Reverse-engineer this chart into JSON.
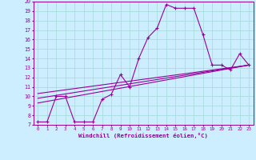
{
  "xlabel": "Windchill (Refroidissement éolien,°C)",
  "xlim": [
    -0.5,
    23.5
  ],
  "ylim": [
    7,
    20
  ],
  "xticks": [
    0,
    1,
    2,
    3,
    4,
    5,
    6,
    7,
    8,
    9,
    10,
    11,
    12,
    13,
    14,
    15,
    16,
    17,
    18,
    19,
    20,
    21,
    22,
    23
  ],
  "yticks": [
    7,
    8,
    9,
    10,
    11,
    12,
    13,
    14,
    15,
    16,
    17,
    18,
    19,
    20
  ],
  "bg_color": "#cceeff",
  "line_color": "#990099",
  "grid_color": "#aadddd",
  "main_curve_x": [
    0,
    1,
    2,
    3,
    4,
    5,
    6,
    7,
    8,
    9,
    10,
    11,
    12,
    13,
    14,
    15,
    16,
    17,
    18,
    19,
    20,
    21,
    22,
    23
  ],
  "main_curve_y": [
    7.3,
    7.3,
    10.0,
    10.0,
    7.3,
    7.3,
    7.3,
    9.7,
    10.2,
    12.3,
    11.0,
    14.0,
    16.2,
    17.2,
    19.7,
    19.3,
    19.3,
    19.3,
    16.5,
    13.3,
    13.3,
    12.8,
    14.5,
    13.3
  ],
  "line1_x": [
    0,
    23
  ],
  "line1_y": [
    10.3,
    13.3
  ],
  "line2_x": [
    0,
    23
  ],
  "line2_y": [
    9.8,
    13.3
  ],
  "line3_x": [
    0,
    23
  ],
  "line3_y": [
    9.3,
    13.3
  ]
}
